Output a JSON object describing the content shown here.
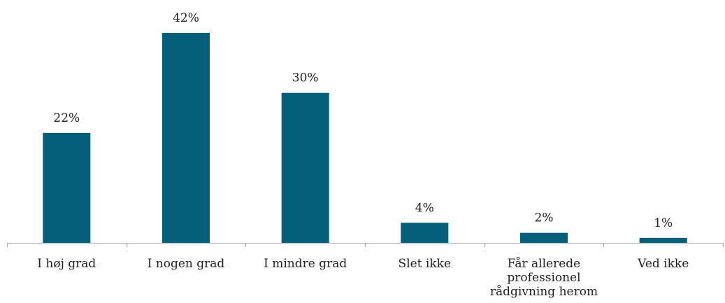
{
  "chart_data": {
    "type": "bar",
    "categories": [
      "I høj grad",
      "I nogen grad",
      "I mindre grad",
      "Slet ikke",
      "Får allerede professionel rådgivning herom",
      "Ved ikke"
    ],
    "category_lines": [
      [
        "I høj grad"
      ],
      [
        "I nogen grad"
      ],
      [
        "I mindre grad"
      ],
      [
        "Slet ikke"
      ],
      [
        "Får allerede",
        "professionel",
        "rådgivning herom"
      ],
      [
        "Ved ikke"
      ]
    ],
    "values": [
      22,
      42,
      30,
      4,
      2,
      1
    ],
    "data_labels": [
      "22%",
      "42%",
      "30%",
      "4%",
      "2%",
      "1%"
    ],
    "unit": "%",
    "ylim": [
      0,
      42
    ],
    "title": "",
    "xlabel": "",
    "ylabel": "",
    "grid": false,
    "legend": "none",
    "bar_color": "#035F7A",
    "axis_color": "#A6A6A6"
  }
}
